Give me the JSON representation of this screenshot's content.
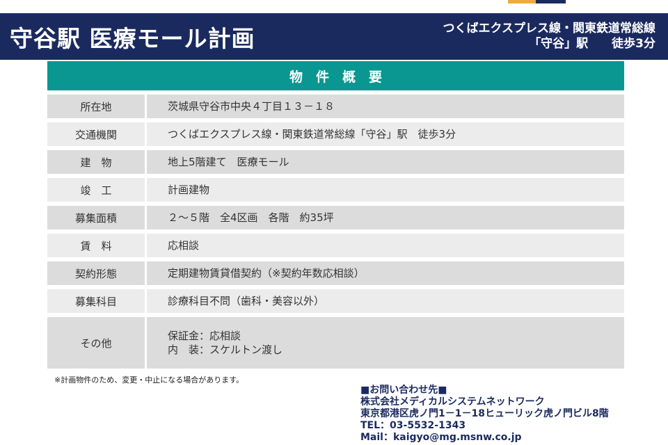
{
  "colors": {
    "navy": "#1b2a5e",
    "teal": "#0a9691",
    "orange": "#f0a93c",
    "row_dark": "#dcdcdc",
    "row_light": "#ececec"
  },
  "header": {
    "title": "守谷駅 医療モール計画",
    "subtitle_line1": "つくばエクスプレス線・関東鉄道常総線",
    "subtitle_line2": "「守谷」駅　　徒歩3分"
  },
  "table": {
    "title": "物　件　概　要",
    "rows": [
      {
        "label": "所在地",
        "value": "茨城県守谷市中央４丁目１３－１８"
      },
      {
        "label": "交通機関",
        "value": "つくばエクスプレス線・関東鉄道常総線「守谷」駅　徒歩3分"
      },
      {
        "label": "建　物",
        "value": "地上5階建て　医療モール"
      },
      {
        "label": "竣　工",
        "value": "計画建物"
      },
      {
        "label": "募集面積",
        "value": "２～５階　全4区画　各階　約35坪"
      },
      {
        "label": "賃　料",
        "value": "応相談"
      },
      {
        "label": "契約形態",
        "value": "定期建物賃貸借契約（※契約年数応相談）"
      },
      {
        "label": "募集科目",
        "value": "診療科目不問（歯科・美容以外）"
      },
      {
        "label": "その他",
        "value": "保証金：応相談\n内　装：スケルトン渡し"
      }
    ]
  },
  "footnote": "※計画物件のため、変更・中止になる場合があります。",
  "contact": {
    "heading": "■お問い合わせ先■",
    "company": "株式会社メディカルシステムネットワーク",
    "address": "東京都港区虎ノ門1－1－18ヒューリック虎ノ門ビル8階",
    "tel": "TEL：03-5532-1343",
    "mail": "Mail：kaigyo@mg.msnw.co.jp"
  }
}
